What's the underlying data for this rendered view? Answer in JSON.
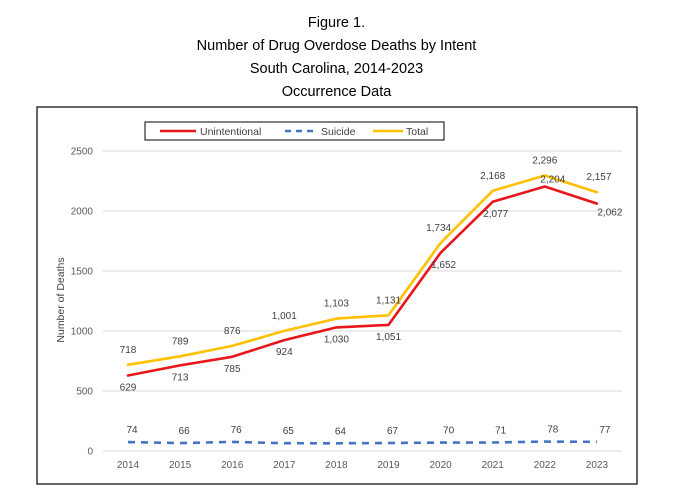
{
  "header": {
    "figure_label": "Figure 1.",
    "title": "Number of Drug Overdose Deaths by Intent",
    "subtitle": "South Carolina, 2014-2023",
    "data_note": "Occurrence Data"
  },
  "chart_data": {
    "type": "line",
    "title": "Number of Drug Overdose Deaths by Intent",
    "subtitle": "South Carolina, 2014-2023",
    "xlabel": "",
    "ylabel": "Number of Deaths",
    "ylim": [
      0,
      2500
    ],
    "yticks": [
      0,
      500,
      1000,
      1500,
      2000,
      2500
    ],
    "grid": true,
    "legend_position": "top-center",
    "categories": [
      "2014",
      "2015",
      "2016",
      "2017",
      "2018",
      "2019",
      "2020",
      "2021",
      "2022",
      "2023"
    ],
    "series": [
      {
        "name": "Unintentional",
        "color": "#e8161b",
        "style": "solid",
        "values": [
          629,
          713,
          785,
          924,
          1030,
          1051,
          1652,
          2077,
          2204,
          2062
        ],
        "labels": [
          "629",
          "713",
          "785",
          "924",
          "1,030",
          "1,051",
          "1,652",
          "2,077",
          "2,204",
          "2,062"
        ]
      },
      {
        "name": "Suicide",
        "color": "#4472c4",
        "style": "dashed",
        "values": [
          74,
          66,
          76,
          65,
          64,
          67,
          70,
          71,
          78,
          77
        ],
        "labels": [
          "74",
          "66",
          "76",
          "65",
          "64",
          "67",
          "70",
          "71",
          "78",
          "77"
        ]
      },
      {
        "name": "Total",
        "color": "#ffc000",
        "style": "solid",
        "values": [
          718,
          789,
          876,
          1001,
          1103,
          1131,
          1734,
          2168,
          2296,
          2157
        ],
        "labels": [
          "718",
          "789",
          "876",
          "1,001",
          "1,103",
          "1,131",
          "1,734",
          "2,168",
          "2,296",
          "2,157"
        ]
      }
    ]
  }
}
